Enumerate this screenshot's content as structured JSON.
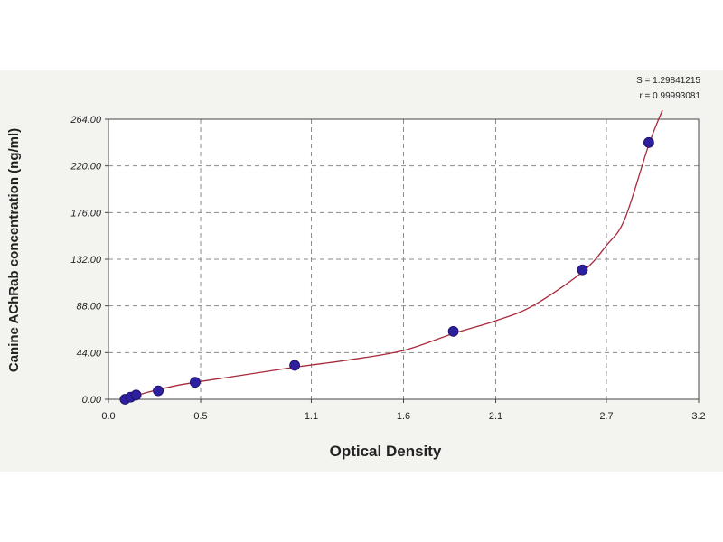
{
  "chart_data": {
    "type": "scatter",
    "title": "",
    "xlabel": "Optical Density",
    "ylabel": "Canine AChRab concentration (ng/ml)",
    "xlim": [
      0,
      3.2
    ],
    "ylim": [
      0,
      264
    ],
    "x_ticks": [
      0.0,
      0.5,
      1.1,
      1.6,
      2.1,
      2.7,
      3.2
    ],
    "x_tick_labels": [
      "0.0",
      "0.5",
      "1.1",
      "1.6",
      "2.1",
      "2.7",
      "3.2"
    ],
    "y_ticks": [
      0,
      44,
      88,
      132,
      176,
      220,
      264
    ],
    "y_tick_labels": [
      "0.00",
      "44.00",
      "88.00",
      "132.00",
      "176.00",
      "220.00",
      "264.00"
    ],
    "grid": true,
    "series": [
      {
        "points": [
          {
            "x": 0.09,
            "y": 0.0
          },
          {
            "x": 0.12,
            "y": 2.0
          },
          {
            "x": 0.15,
            "y": 4.0
          },
          {
            "x": 0.27,
            "y": 8.0
          },
          {
            "x": 0.47,
            "y": 16.0
          },
          {
            "x": 1.01,
            "y": 32.0
          },
          {
            "x": 1.87,
            "y": 64.0
          },
          {
            "x": 2.57,
            "y": 122.0
          },
          {
            "x": 2.93,
            "y": 242.0
          }
        ],
        "color": "#2e1f9e"
      }
    ],
    "fit_curve": {
      "color": "#a82a3c",
      "points": [
        {
          "x": 0.09,
          "y": 0.0
        },
        {
          "x": 0.2,
          "y": 6.0
        },
        {
          "x": 0.4,
          "y": 14.0
        },
        {
          "x": 0.7,
          "y": 22.0
        },
        {
          "x": 1.0,
          "y": 30.0
        },
        {
          "x": 1.3,
          "y": 37.0
        },
        {
          "x": 1.6,
          "y": 46.0
        },
        {
          "x": 1.87,
          "y": 62.0
        },
        {
          "x": 2.1,
          "y": 74.0
        },
        {
          "x": 2.3,
          "y": 88.0
        },
        {
          "x": 2.57,
          "y": 120.0
        },
        {
          "x": 2.7,
          "y": 145.0
        },
        {
          "x": 2.8,
          "y": 170.0
        },
        {
          "x": 2.93,
          "y": 240.0
        },
        {
          "x": 3.01,
          "y": 275.0
        }
      ]
    },
    "annotations": {
      "s_line": "S = 1.29841215",
      "r_line": "r = 0.99993081"
    }
  },
  "colors": {
    "panel_background": "#f3f3ef",
    "plot_background": "#ffffff",
    "grid": "#8a8a8a",
    "axis": "#444444",
    "marker": "#2e1f9e",
    "curve": "#a82a3c"
  }
}
